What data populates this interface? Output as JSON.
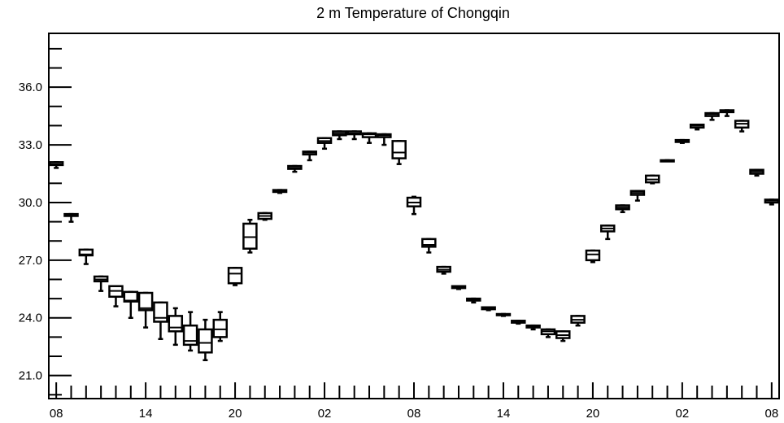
{
  "chart_data": {
    "type": "boxplot",
    "title": "2 m Temperature of Chongqin",
    "xlabel": "",
    "ylabel": "",
    "ylim": [
      19.8,
      38.8
    ],
    "xlim": [
      -0.5,
      48.5
    ],
    "grid": false,
    "legend": "none",
    "x_tick_labels": [
      {
        "x": 0,
        "label": "08"
      },
      {
        "x": 6,
        "label": "14"
      },
      {
        "x": 12,
        "label": "20"
      },
      {
        "x": 18,
        "label": "02"
      },
      {
        "x": 24,
        "label": "08"
      },
      {
        "x": 30,
        "label": "14"
      },
      {
        "x": 36,
        "label": "20"
      },
      {
        "x": 42,
        "label": "02"
      },
      {
        "x": 48,
        "label": "08"
      }
    ],
    "y_tick_labels": [
      {
        "y": 21.0,
        "label": "21.0"
      },
      {
        "y": 24.0,
        "label": "24.0"
      },
      {
        "y": 27.0,
        "label": "27.0"
      },
      {
        "y": 30.0,
        "label": "30.0"
      },
      {
        "y": 33.0,
        "label": "33.0"
      },
      {
        "y": 36.0,
        "label": "36.0"
      }
    ],
    "boxes": [
      {
        "x": 0,
        "min": 31.8,
        "q1": 31.95,
        "median": 32.0,
        "q3": 32.1,
        "max": 32.1
      },
      {
        "x": 1,
        "min": 29.0,
        "q1": 29.3,
        "median": 29.35,
        "q3": 29.4,
        "max": 29.4
      },
      {
        "x": 2,
        "min": 26.8,
        "q1": 27.25,
        "median": 27.3,
        "q3": 27.55,
        "max": 27.55
      },
      {
        "x": 3,
        "min": 25.4,
        "q1": 25.9,
        "median": 26.0,
        "q3": 26.15,
        "max": 26.15
      },
      {
        "x": 4,
        "min": 24.6,
        "q1": 25.1,
        "median": 25.4,
        "q3": 25.65,
        "max": 25.65
      },
      {
        "x": 5,
        "min": 24.0,
        "q1": 24.85,
        "median": 24.9,
        "q3": 25.35,
        "max": 25.35
      },
      {
        "x": 6,
        "min": 23.5,
        "q1": 24.4,
        "median": 24.5,
        "q3": 25.3,
        "max": 25.3
      },
      {
        "x": 7,
        "min": 22.9,
        "q1": 23.8,
        "median": 24.0,
        "q3": 24.8,
        "max": 24.8
      },
      {
        "x": 8,
        "min": 22.6,
        "q1": 23.3,
        "median": 23.5,
        "q3": 24.1,
        "max": 24.5
      },
      {
        "x": 9,
        "min": 22.3,
        "q1": 22.6,
        "median": 22.8,
        "q3": 23.6,
        "max": 24.3
      },
      {
        "x": 10,
        "min": 21.8,
        "q1": 22.2,
        "median": 22.7,
        "q3": 23.4,
        "max": 23.9
      },
      {
        "x": 11,
        "min": 22.8,
        "q1": 23.0,
        "median": 23.4,
        "q3": 23.9,
        "max": 24.3
      },
      {
        "x": 12,
        "min": 25.7,
        "q1": 25.8,
        "median": 26.3,
        "q3": 26.6,
        "max": 26.6
      },
      {
        "x": 13,
        "min": 27.4,
        "q1": 27.6,
        "median": 28.2,
        "q3": 28.9,
        "max": 29.1
      },
      {
        "x": 14,
        "min": 29.1,
        "q1": 29.15,
        "median": 29.3,
        "q3": 29.45,
        "max": 29.45
      },
      {
        "x": 15,
        "min": 30.5,
        "q1": 30.55,
        "median": 30.6,
        "q3": 30.65,
        "max": 30.65
      },
      {
        "x": 16,
        "min": 31.6,
        "q1": 31.75,
        "median": 31.8,
        "q3": 31.9,
        "max": 31.9
      },
      {
        "x": 17,
        "min": 32.2,
        "q1": 32.5,
        "median": 32.6,
        "q3": 32.65,
        "max": 32.65
      },
      {
        "x": 18,
        "min": 32.8,
        "q1": 33.1,
        "median": 33.2,
        "q3": 33.35,
        "max": 33.35
      },
      {
        "x": 19,
        "min": 33.3,
        "q1": 33.5,
        "median": 33.6,
        "q3": 33.7,
        "max": 33.7
      },
      {
        "x": 20,
        "min": 33.3,
        "q1": 33.55,
        "median": 33.6,
        "q3": 33.7,
        "max": 33.7
      },
      {
        "x": 21,
        "min": 33.1,
        "q1": 33.4,
        "median": 33.55,
        "q3": 33.6,
        "max": 33.6
      },
      {
        "x": 22,
        "min": 33.0,
        "q1": 33.4,
        "median": 33.5,
        "q3": 33.55,
        "max": 33.55
      },
      {
        "x": 23,
        "min": 32.0,
        "q1": 32.3,
        "median": 32.6,
        "q3": 33.2,
        "max": 33.2
      },
      {
        "x": 24,
        "min": 29.4,
        "q1": 29.8,
        "median": 30.0,
        "q3": 30.25,
        "max": 30.3
      },
      {
        "x": 25,
        "min": 27.4,
        "q1": 27.7,
        "median": 27.8,
        "q3": 28.1,
        "max": 28.1
      },
      {
        "x": 26,
        "min": 26.3,
        "q1": 26.4,
        "median": 26.5,
        "q3": 26.65,
        "max": 26.65
      },
      {
        "x": 27,
        "min": 25.5,
        "q1": 25.55,
        "median": 25.6,
        "q3": 25.65,
        "max": 25.65
      },
      {
        "x": 28,
        "min": 24.8,
        "q1": 24.9,
        "median": 24.95,
        "q3": 25.0,
        "max": 25.0
      },
      {
        "x": 29,
        "min": 24.4,
        "q1": 24.45,
        "median": 24.5,
        "q3": 24.55,
        "max": 24.55
      },
      {
        "x": 30,
        "min": 24.1,
        "q1": 24.15,
        "median": 24.15,
        "q3": 24.2,
        "max": 24.2
      },
      {
        "x": 31,
        "min": 23.7,
        "q1": 23.75,
        "median": 23.8,
        "q3": 23.85,
        "max": 23.85
      },
      {
        "x": 32,
        "min": 23.4,
        "q1": 23.5,
        "median": 23.55,
        "q3": 23.6,
        "max": 23.6
      },
      {
        "x": 33,
        "min": 23.0,
        "q1": 23.15,
        "median": 23.3,
        "q3": 23.4,
        "max": 23.4
      },
      {
        "x": 34,
        "min": 22.8,
        "q1": 22.95,
        "median": 23.1,
        "q3": 23.3,
        "max": 23.3
      },
      {
        "x": 35,
        "min": 23.6,
        "q1": 23.75,
        "median": 23.9,
        "q3": 24.1,
        "max": 24.1
      },
      {
        "x": 36,
        "min": 26.9,
        "q1": 27.0,
        "median": 27.3,
        "q3": 27.5,
        "max": 27.5
      },
      {
        "x": 37,
        "min": 28.1,
        "q1": 28.5,
        "median": 28.65,
        "q3": 28.8,
        "max": 28.8
      },
      {
        "x": 38,
        "min": 29.5,
        "q1": 29.65,
        "median": 29.75,
        "q3": 29.85,
        "max": 29.85
      },
      {
        "x": 39,
        "min": 30.1,
        "q1": 30.4,
        "median": 30.5,
        "q3": 30.6,
        "max": 30.6
      },
      {
        "x": 40,
        "min": 31.0,
        "q1": 31.05,
        "median": 31.2,
        "q3": 31.4,
        "max": 31.4
      },
      {
        "x": 41,
        "min": 32.15,
        "q1": 32.15,
        "median": 32.15,
        "q3": 32.2,
        "max": 32.2
      },
      {
        "x": 42,
        "min": 33.1,
        "q1": 33.15,
        "median": 33.2,
        "q3": 33.25,
        "max": 33.25
      },
      {
        "x": 43,
        "min": 33.8,
        "q1": 33.9,
        "median": 34.0,
        "q3": 34.05,
        "max": 34.05
      },
      {
        "x": 44,
        "min": 34.3,
        "q1": 34.5,
        "median": 34.6,
        "q3": 34.65,
        "max": 34.65
      },
      {
        "x": 45,
        "min": 34.5,
        "q1": 34.7,
        "median": 34.75,
        "q3": 34.8,
        "max": 34.8
      },
      {
        "x": 46,
        "min": 33.7,
        "q1": 33.9,
        "median": 34.1,
        "q3": 34.25,
        "max": 34.25
      },
      {
        "x": 47,
        "min": 31.4,
        "q1": 31.5,
        "median": 31.6,
        "q3": 31.7,
        "max": 31.7
      },
      {
        "x": 48,
        "min": 29.9,
        "q1": 30.0,
        "median": 30.1,
        "q3": 30.15,
        "max": 30.15
      }
    ],
    "colors": {
      "box_stroke": "#000000",
      "box_fill": "#ffffff",
      "axis": "#000000"
    }
  }
}
